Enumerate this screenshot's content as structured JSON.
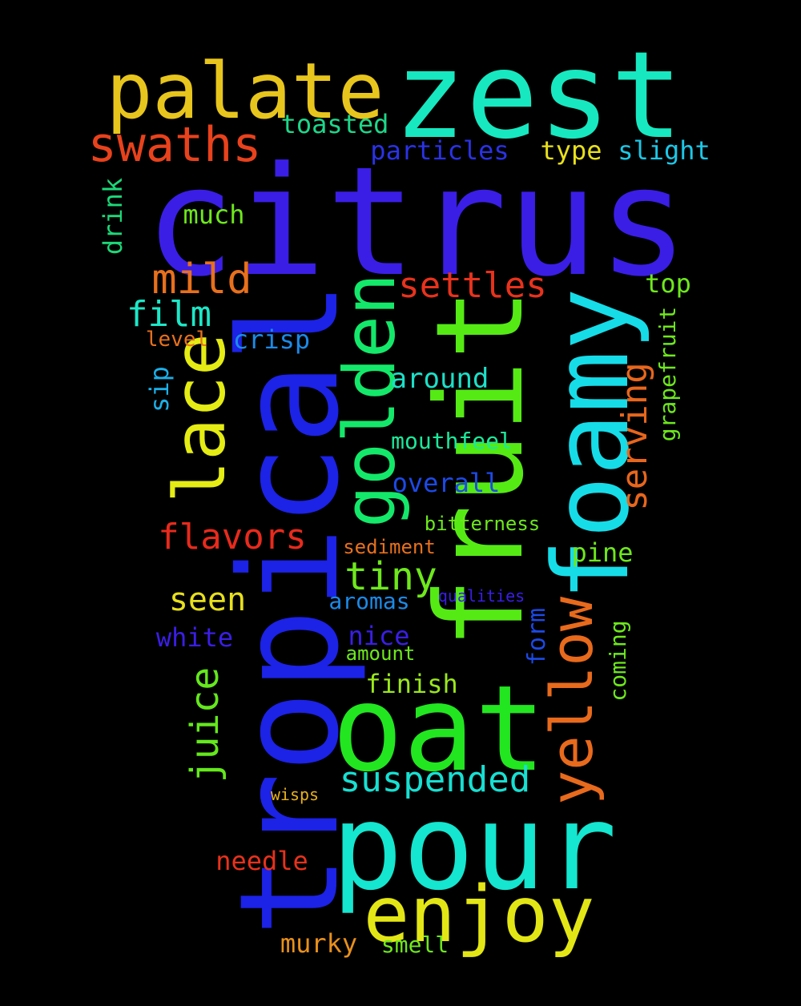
{
  "words": [
    {
      "id": "citrus",
      "text": "citrus",
      "color": "#3a1ee6"
    },
    {
      "id": "tropical",
      "text": "tropical",
      "color": "#1c22e6"
    },
    {
      "id": "fruit",
      "text": "fruit",
      "color": "#55ea14"
    },
    {
      "id": "zest",
      "text": "zest",
      "color": "#17e8c0"
    },
    {
      "id": "foamy",
      "text": "foamy",
      "color": "#16dce8"
    },
    {
      "id": "oat",
      "text": "oat",
      "color": "#22e620"
    },
    {
      "id": "pour",
      "text": "pour",
      "color": "#14e6cf"
    },
    {
      "id": "palate",
      "text": "palate",
      "color": "#e8c51d"
    },
    {
      "id": "golden",
      "text": "golden",
      "color": "#14e86a"
    },
    {
      "id": "lace",
      "text": "lace",
      "color": "#e4ec14"
    },
    {
      "id": "enjoy",
      "text": "enjoy",
      "color": "#e3e615"
    },
    {
      "id": "yellow",
      "text": "yellow",
      "color": "#e86a1c"
    },
    {
      "id": "swaths",
      "text": "swaths",
      "color": "#e8421c"
    },
    {
      "id": "settles",
      "text": "settles",
      "color": "#e8321c"
    },
    {
      "id": "mild",
      "text": "mild",
      "color": "#e8701c"
    },
    {
      "id": "serving",
      "text": "serving",
      "color": "#e8661c"
    },
    {
      "id": "tiny",
      "text": "tiny",
      "color": "#6ee81c"
    },
    {
      "id": "suspended",
      "text": "suspended",
      "color": "#17e0d2"
    },
    {
      "id": "juice",
      "text": "juice",
      "color": "#64e81c"
    },
    {
      "id": "flavors",
      "text": "flavors",
      "color": "#e82a1c"
    },
    {
      "id": "film",
      "text": "film",
      "color": "#1ce8c8"
    },
    {
      "id": "particles",
      "text": "particles",
      "color": "#2a32e6"
    },
    {
      "id": "toasted",
      "text": "toasted",
      "color": "#1cd88a"
    },
    {
      "id": "type",
      "text": "type",
      "color": "#e8e01c"
    },
    {
      "id": "slight",
      "text": "slight",
      "color": "#1cc8e8"
    },
    {
      "id": "much",
      "text": "much",
      "color": "#6ee81c"
    },
    {
      "id": "drink",
      "text": "drink",
      "color": "#1cd878"
    },
    {
      "id": "top",
      "text": "top",
      "color": "#6ee81c"
    },
    {
      "id": "grapefruit",
      "text": "grapefruit",
      "color": "#6ee81c"
    },
    {
      "id": "level",
      "text": "level",
      "color": "#e8701c"
    },
    {
      "id": "crisp",
      "text": "crisp",
      "color": "#1c8ae8"
    },
    {
      "id": "sip",
      "text": "sip",
      "color": "#1cb0e8"
    },
    {
      "id": "around",
      "text": "around",
      "color": "#1ce0c8"
    },
    {
      "id": "mouthfeel",
      "text": "mouthfeel",
      "color": "#1ce89a"
    },
    {
      "id": "overall",
      "text": "overall",
      "color": "#1c4ae8"
    },
    {
      "id": "bitterness",
      "text": "bitterness",
      "color": "#6ee81c"
    },
    {
      "id": "sediment",
      "text": "sediment",
      "color": "#e8701c"
    },
    {
      "id": "pine",
      "text": "pine",
      "color": "#6ee81c"
    },
    {
      "id": "seen",
      "text": "seen",
      "color": "#e8e01c"
    },
    {
      "id": "aromas",
      "text": "aromas",
      "color": "#1c8ae8"
    },
    {
      "id": "qualities",
      "text": "qualities",
      "color": "#3a1ee6"
    },
    {
      "id": "white",
      "text": "white",
      "color": "#3a1ee6"
    },
    {
      "id": "nice",
      "text": "nice",
      "color": "#3a1ee6"
    },
    {
      "id": "amount",
      "text": "amount",
      "color": "#6ee81c"
    },
    {
      "id": "form",
      "text": "form",
      "color": "#1c4ae8"
    },
    {
      "id": "coming",
      "text": "coming",
      "color": "#6ee81c"
    },
    {
      "id": "finish",
      "text": "finish",
      "color": "#9ae81c"
    },
    {
      "id": "wisps",
      "text": "wisps",
      "color": "#e8b01c"
    },
    {
      "id": "needle",
      "text": "needle",
      "color": "#e8321c"
    },
    {
      "id": "murky",
      "text": "murky",
      "color": "#e8901c"
    },
    {
      "id": "smell",
      "text": "smell",
      "color": "#6ee81c"
    }
  ]
}
